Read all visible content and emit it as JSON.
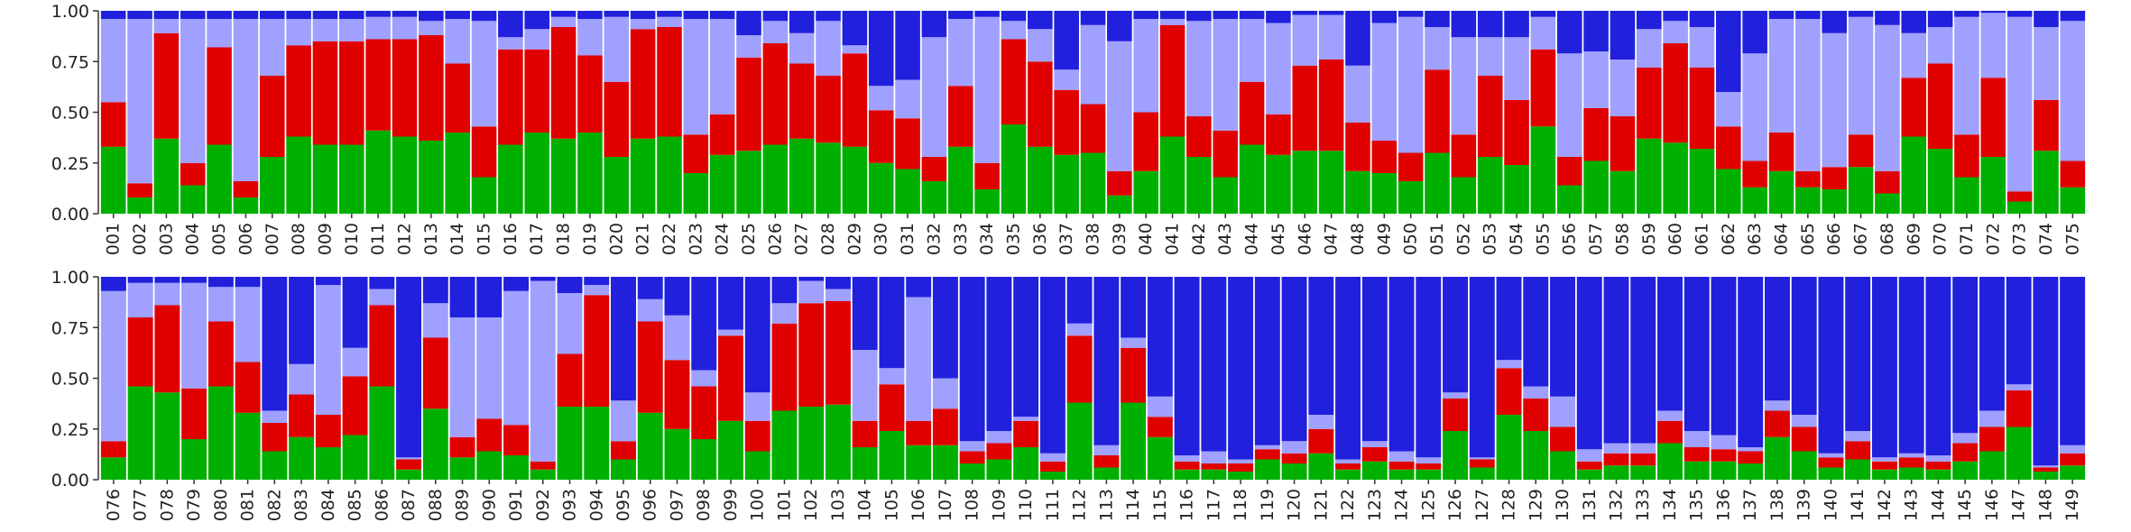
{
  "chart_data": [
    {
      "type": "bar",
      "stacked": true,
      "ylim": [
        0,
        1
      ],
      "yticks": [
        "0.00",
        "0.25",
        "0.50",
        "0.75",
        "1.00"
      ],
      "grid": false,
      "legend": "none",
      "series_colors": [
        "#00b000",
        "#e00000",
        "#a0a0ff",
        "#2020dd"
      ],
      "categories": [
        "001",
        "002",
        "003",
        "004",
        "005",
        "006",
        "007",
        "008",
        "009",
        "010",
        "011",
        "012",
        "013",
        "014",
        "015",
        "016",
        "017",
        "018",
        "019",
        "020",
        "021",
        "022",
        "023",
        "024",
        "025",
        "026",
        "027",
        "028",
        "029",
        "030",
        "031",
        "032",
        "033",
        "034",
        "035",
        "036",
        "037",
        "038",
        "039",
        "040",
        "041",
        "042",
        "043",
        "044",
        "045",
        "046",
        "047",
        "048",
        "049",
        "050",
        "051",
        "052",
        "053",
        "054",
        "055",
        "056",
        "057",
        "058",
        "059",
        "060",
        "061",
        "062",
        "063",
        "064",
        "065",
        "066",
        "067",
        "068",
        "069",
        "070",
        "071",
        "072",
        "073",
        "074",
        "075"
      ],
      "series": [
        {
          "values": [
            0.33,
            0.08,
            0.37,
            0.14,
            0.34,
            0.08,
            0.28,
            0.38,
            0.34,
            0.34,
            0.41,
            0.38,
            0.36,
            0.4,
            0.18,
            0.34,
            0.4,
            0.37,
            0.4,
            0.28,
            0.37,
            0.38,
            0.2,
            0.29,
            0.31,
            0.34,
            0.37,
            0.35,
            0.33,
            0.25,
            0.22,
            0.16,
            0.33,
            0.12,
            0.44,
            0.33,
            0.29,
            0.3,
            0.09,
            0.21,
            0.38,
            0.28,
            0.18,
            0.34,
            0.29,
            0.31,
            0.31,
            0.21,
            0.2,
            0.16,
            0.3,
            0.18,
            0.28,
            0.24,
            0.43,
            0.14,
            0.26,
            0.21,
            0.37,
            0.35,
            0.32,
            0.22,
            0.13,
            0.21,
            0.13,
            0.12,
            0.23,
            0.1,
            0.38,
            0.32,
            0.18,
            0.28,
            0.06,
            0.31,
            0.13
          ]
        },
        {
          "values": [
            0.22,
            0.07,
            0.52,
            0.11,
            0.48,
            0.08,
            0.4,
            0.45,
            0.51,
            0.51,
            0.45,
            0.48,
            0.52,
            0.34,
            0.25,
            0.47,
            0.41,
            0.55,
            0.38,
            0.37,
            0.54,
            0.54,
            0.19,
            0.2,
            0.46,
            0.5,
            0.37,
            0.33,
            0.46,
            0.26,
            0.25,
            0.12,
            0.3,
            0.13,
            0.42,
            0.42,
            0.32,
            0.24,
            0.12,
            0.29,
            0.55,
            0.2,
            0.23,
            0.31,
            0.2,
            0.42,
            0.45,
            0.24,
            0.16,
            0.14,
            0.41,
            0.21,
            0.4,
            0.32,
            0.38,
            0.14,
            0.26,
            0.27,
            0.35,
            0.49,
            0.4,
            0.21,
            0.13,
            0.19,
            0.08,
            0.11,
            0.16,
            0.11,
            0.29,
            0.42,
            0.21,
            0.39,
            0.05,
            0.25,
            0.13
          ]
        },
        {
          "values": [
            0.41,
            0.81,
            0.07,
            0.71,
            0.14,
            0.8,
            0.28,
            0.13,
            0.11,
            0.11,
            0.11,
            0.11,
            0.07,
            0.22,
            0.52,
            0.06,
            0.1,
            0.05,
            0.18,
            0.32,
            0.05,
            0.05,
            0.57,
            0.47,
            0.11,
            0.11,
            0.15,
            0.27,
            0.04,
            0.12,
            0.19,
            0.59,
            0.33,
            0.72,
            0.09,
            0.16,
            0.1,
            0.39,
            0.64,
            0.46,
            0.03,
            0.47,
            0.55,
            0.31,
            0.45,
            0.25,
            0.22,
            0.28,
            0.58,
            0.67,
            0.21,
            0.48,
            0.19,
            0.31,
            0.16,
            0.51,
            0.28,
            0.28,
            0.19,
            0.11,
            0.2,
            0.17,
            0.53,
            0.56,
            0.75,
            0.66,
            0.58,
            0.72,
            0.22,
            0.18,
            0.58,
            0.32,
            0.86,
            0.36,
            0.69
          ]
        },
        {
          "values": [
            0.04,
            0.04,
            0.04,
            0.04,
            0.04,
            0.04,
            0.04,
            0.04,
            0.04,
            0.04,
            0.03,
            0.03,
            0.05,
            0.04,
            0.05,
            0.13,
            0.09,
            0.03,
            0.04,
            0.03,
            0.04,
            0.03,
            0.04,
            0.04,
            0.12,
            0.05,
            0.11,
            0.05,
            0.17,
            0.37,
            0.34,
            0.13,
            0.04,
            0.03,
            0.05,
            0.09,
            0.29,
            0.07,
            0.15,
            0.04,
            0.04,
            0.05,
            0.04,
            0.04,
            0.06,
            0.02,
            0.02,
            0.27,
            0.06,
            0.03,
            0.08,
            0.13,
            0.13,
            0.13,
            0.03,
            0.21,
            0.2,
            0.24,
            0.09,
            0.05,
            0.08,
            0.4,
            0.21,
            0.04,
            0.04,
            0.11,
            0.03,
            0.07,
            0.11,
            0.08,
            0.03,
            0.01,
            0.03,
            0.08,
            0.05
          ]
        }
      ]
    },
    {
      "type": "bar",
      "stacked": true,
      "ylim": [
        0,
        1
      ],
      "yticks": [
        "0.00",
        "0.25",
        "0.50",
        "0.75",
        "1.00"
      ],
      "grid": false,
      "legend": "none",
      "series_colors": [
        "#00b000",
        "#e00000",
        "#a0a0ff",
        "#2020dd"
      ],
      "categories": [
        "076",
        "077",
        "078",
        "079",
        "080",
        "081",
        "082",
        "083",
        "084",
        "085",
        "086",
        "087",
        "088",
        "089",
        "090",
        "091",
        "092",
        "093",
        "094",
        "095",
        "096",
        "097",
        "098",
        "099",
        "100",
        "101",
        "102",
        "103",
        "104",
        "105",
        "106",
        "107",
        "108",
        "109",
        "110",
        "111",
        "112",
        "113",
        "114",
        "115",
        "116",
        "117",
        "118",
        "119",
        "120",
        "121",
        "122",
        "123",
        "124",
        "125",
        "126",
        "127",
        "128",
        "129",
        "130",
        "131",
        "132",
        "133",
        "134",
        "135",
        "136",
        "137",
        "138",
        "139",
        "140",
        "141",
        "142",
        "143",
        "144",
        "145",
        "146",
        "147",
        "148",
        "149"
      ],
      "series": [
        {
          "values": [
            0.11,
            0.46,
            0.43,
            0.2,
            0.46,
            0.33,
            0.14,
            0.21,
            0.16,
            0.22,
            0.46,
            0.05,
            0.35,
            0.11,
            0.14,
            0.12,
            0.05,
            0.36,
            0.36,
            0.1,
            0.33,
            0.25,
            0.2,
            0.29,
            0.14,
            0.34,
            0.36,
            0.37,
            0.16,
            0.24,
            0.17,
            0.17,
            0.08,
            0.1,
            0.16,
            0.04,
            0.38,
            0.06,
            0.38,
            0.21,
            0.05,
            0.05,
            0.04,
            0.1,
            0.08,
            0.13,
            0.05,
            0.09,
            0.05,
            0.05,
            0.24,
            0.06,
            0.32,
            0.24,
            0.14,
            0.05,
            0.07,
            0.07,
            0.18,
            0.09,
            0.09,
            0.08,
            0.21,
            0.14,
            0.06,
            0.1,
            0.05,
            0.06,
            0.05,
            0.09,
            0.14,
            0.26,
            0.04,
            0.07
          ]
        },
        {
          "values": [
            0.08,
            0.34,
            0.43,
            0.25,
            0.32,
            0.25,
            0.14,
            0.21,
            0.16,
            0.29,
            0.4,
            0.05,
            0.35,
            0.1,
            0.16,
            0.15,
            0.04,
            0.26,
            0.55,
            0.09,
            0.45,
            0.34,
            0.26,
            0.42,
            0.15,
            0.43,
            0.51,
            0.51,
            0.13,
            0.23,
            0.12,
            0.18,
            0.06,
            0.08,
            0.13,
            0.05,
            0.33,
            0.06,
            0.27,
            0.1,
            0.04,
            0.03,
            0.04,
            0.05,
            0.05,
            0.12,
            0.03,
            0.07,
            0.04,
            0.03,
            0.16,
            0.04,
            0.23,
            0.16,
            0.12,
            0.04,
            0.06,
            0.06,
            0.11,
            0.07,
            0.06,
            0.06,
            0.13,
            0.12,
            0.05,
            0.09,
            0.04,
            0.05,
            0.04,
            0.09,
            0.12,
            0.18,
            0.02,
            0.06
          ]
        },
        {
          "values": [
            0.74,
            0.17,
            0.11,
            0.52,
            0.17,
            0.37,
            0.06,
            0.15,
            0.64,
            0.14,
            0.08,
            0.01,
            0.17,
            0.59,
            0.5,
            0.66,
            0.89,
            0.3,
            0.05,
            0.2,
            0.11,
            0.22,
            0.08,
            0.03,
            0.14,
            0.1,
            0.11,
            0.06,
            0.35,
            0.08,
            0.61,
            0.15,
            0.05,
            0.06,
            0.02,
            0.04,
            0.06,
            0.05,
            0.05,
            0.1,
            0.03,
            0.06,
            0.02,
            0.02,
            0.06,
            0.07,
            0.02,
            0.03,
            0.05,
            0.03,
            0.03,
            0.01,
            0.04,
            0.06,
            0.15,
            0.06,
            0.05,
            0.05,
            0.05,
            0.08,
            0.07,
            0.02,
            0.05,
            0.06,
            0.02,
            0.05,
            0.02,
            0.02,
            0.03,
            0.05,
            0.08,
            0.03,
            0.01,
            0.04
          ]
        },
        {
          "values": [
            0.07,
            0.03,
            0.03,
            0.03,
            0.05,
            0.05,
            0.66,
            0.43,
            0.04,
            0.35,
            0.06,
            0.89,
            0.13,
            0.2,
            0.2,
            0.07,
            0.02,
            0.08,
            0.04,
            0.61,
            0.11,
            0.19,
            0.46,
            0.26,
            0.57,
            0.13,
            0.02,
            0.06,
            0.36,
            0.45,
            0.1,
            0.5,
            0.81,
            0.76,
            0.69,
            0.87,
            0.23,
            0.83,
            0.3,
            0.59,
            0.88,
            0.86,
            0.9,
            0.83,
            0.81,
            0.68,
            0.9,
            0.81,
            0.86,
            0.89,
            0.57,
            0.89,
            0.41,
            0.54,
            0.59,
            0.85,
            0.82,
            0.82,
            0.66,
            0.76,
            0.78,
            0.84,
            0.61,
            0.68,
            0.87,
            0.76,
            0.89,
            0.87,
            0.88,
            0.77,
            0.66,
            0.53,
            0.93,
            0.83
          ]
        }
      ]
    }
  ]
}
